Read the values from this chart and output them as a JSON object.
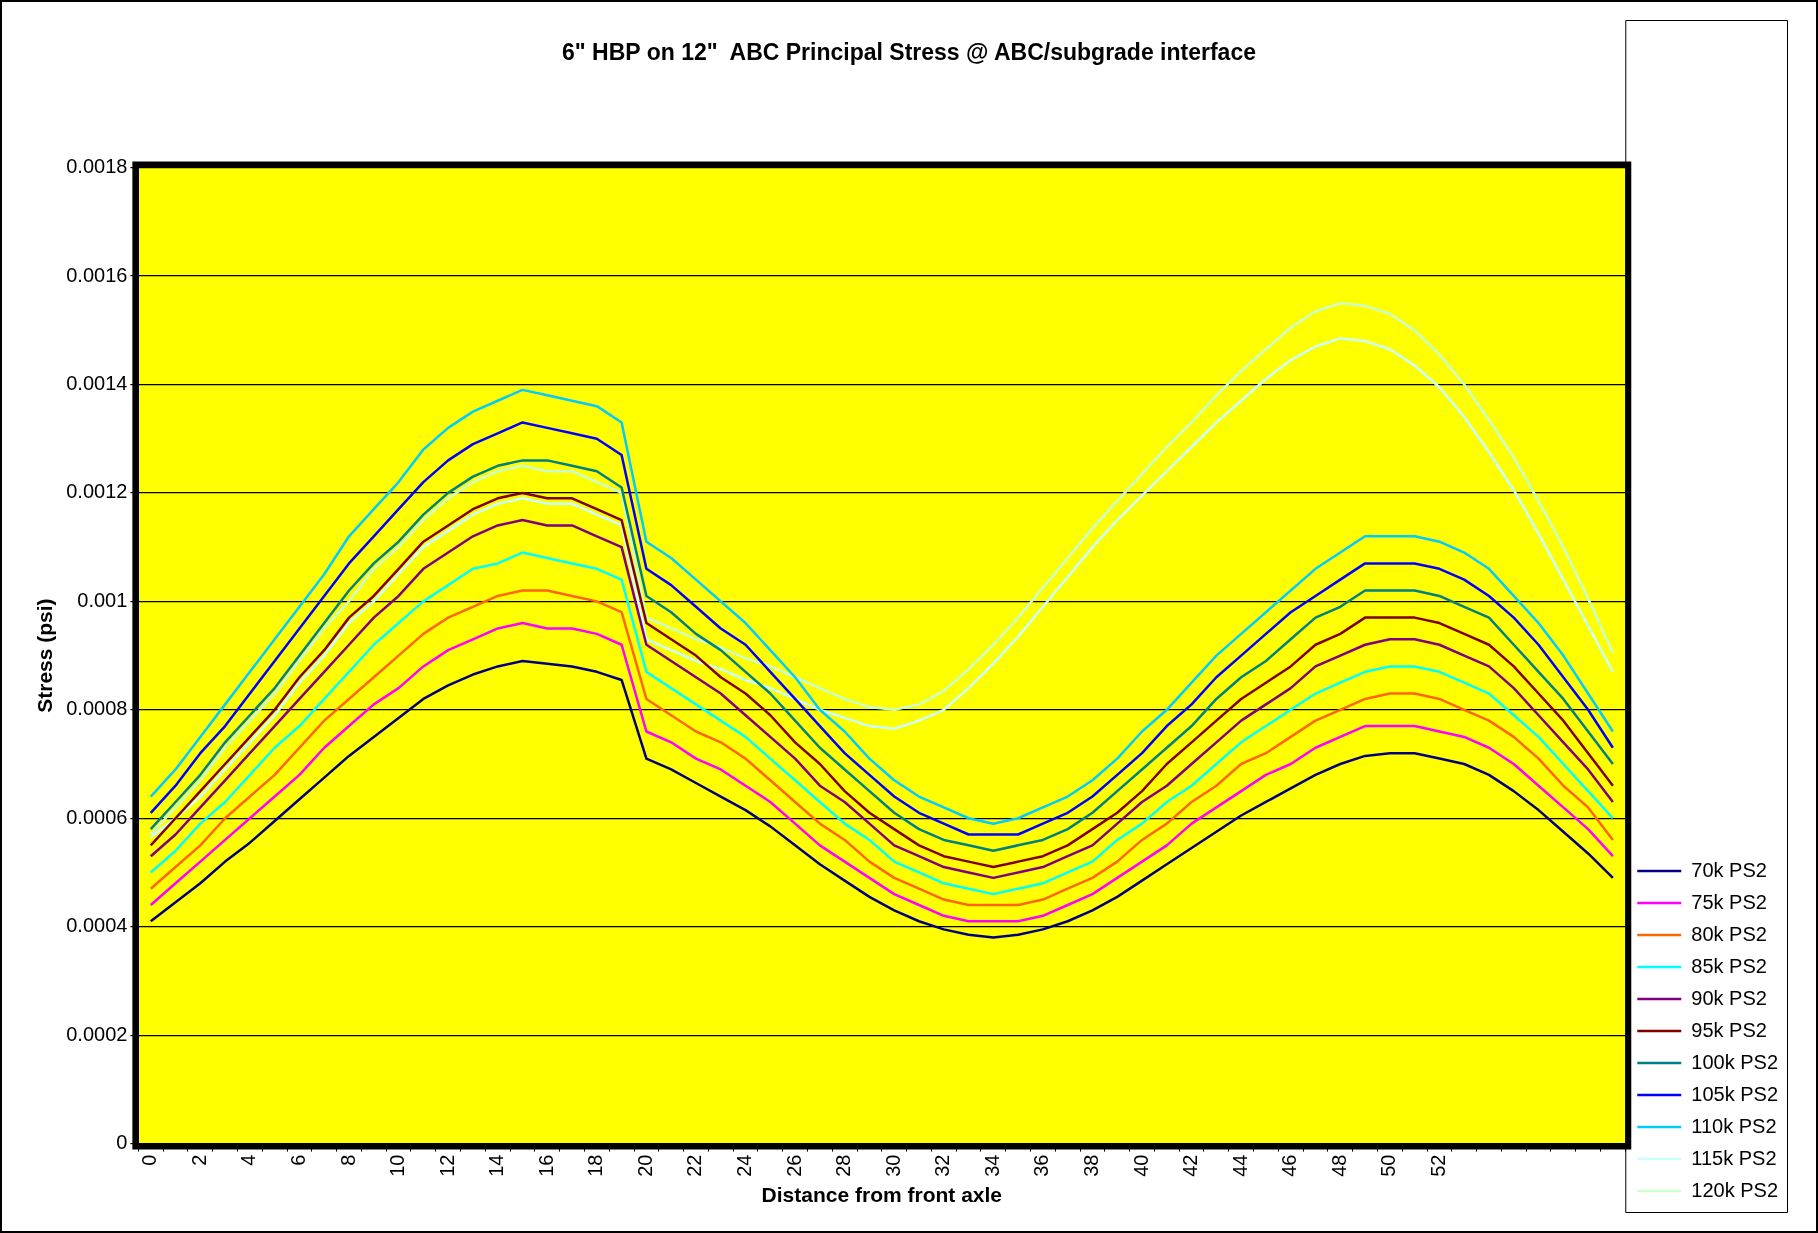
{
  "chart_data": {
    "type": "line",
    "title": "6\" HBP on 12\"  ABC Principal Stress @ ABC/subgrade interface",
    "xlabel": "Distance from front axle",
    "ylabel": "Stress (psi)",
    "categories": [
      "0",
      null,
      "2",
      null,
      "4",
      null,
      "6",
      null,
      "8",
      null,
      "10",
      null,
      "12",
      null,
      "14",
      null,
      "16",
      null,
      "18",
      null,
      "20",
      null,
      "22",
      null,
      "24",
      null,
      "26",
      null,
      "28",
      null,
      "30",
      null,
      "32",
      null,
      "34",
      null,
      "36",
      null,
      "38",
      null,
      "40",
      null,
      "42",
      null,
      "44",
      null,
      "46",
      null,
      "48",
      null,
      "50",
      null,
      "52",
      null,
      null,
      null,
      null,
      null,
      null,
      null
    ],
    "ylim": [
      0,
      0.0018
    ],
    "yticks": [
      0,
      0.0002,
      0.0004,
      0.0006,
      0.0008,
      0.001,
      0.0012,
      0.0014,
      0.0016,
      0.0018
    ],
    "grid": "y",
    "legend": "right",
    "marker": "none",
    "line_style": "solid",
    "series": [
      {
        "name": "70k PS2",
        "color": "#000080",
        "values": [
          0.00041,
          0.000445,
          0.00048,
          0.00052,
          0.000555,
          0.000595,
          0.000635,
          0.000675,
          0.000715,
          0.00075,
          0.000785,
          0.00082,
          0.000845,
          0.000865,
          0.00088,
          0.00089,
          0.000885,
          0.00088,
          0.00087,
          0.000855,
          0.00071,
          0.00069,
          0.000665,
          0.00064,
          0.000615,
          0.000585,
          0.00055,
          0.000515,
          0.000485,
          0.000455,
          0.00043,
          0.00041,
          0.000395,
          0.000385,
          0.00038,
          0.000385,
          0.000395,
          0.00041,
          0.00043,
          0.000455,
          0.000485,
          0.000515,
          0.000545,
          0.000575,
          0.000605,
          0.00063,
          0.000655,
          0.00068,
          0.0007,
          0.000715,
          0.00072,
          0.00072,
          0.00071,
          0.0007,
          0.00068,
          0.00065,
          0.000615,
          0.000575,
          0.000535,
          0.00049
        ]
      },
      {
        "name": "75k PS2",
        "color": "#ff00ff",
        "values": [
          0.00044,
          0.00048,
          0.00052,
          0.00056,
          0.0006,
          0.00064,
          0.00068,
          0.00073,
          0.00077,
          0.00081,
          0.00084,
          0.00088,
          0.00091,
          0.00093,
          0.00095,
          0.00096,
          0.00095,
          0.00095,
          0.00094,
          0.00092,
          0.00076,
          0.00074,
          0.00071,
          0.00069,
          0.00066,
          0.00063,
          0.00059,
          0.00055,
          0.00052,
          0.00049,
          0.00046,
          0.00044,
          0.00042,
          0.00041,
          0.00041,
          0.00041,
          0.00042,
          0.00044,
          0.00046,
          0.00049,
          0.00052,
          0.00055,
          0.00059,
          0.00062,
          0.00065,
          0.00068,
          0.0007,
          0.00073,
          0.00075,
          0.00077,
          0.00077,
          0.00077,
          0.00076,
          0.00075,
          0.00073,
          0.0007,
          0.00066,
          0.00062,
          0.00058,
          0.00053
        ]
      },
      {
        "name": "80k PS2",
        "color": "#ff6600",
        "values": [
          0.00047,
          0.00051,
          0.00055,
          0.0006,
          0.00064,
          0.00068,
          0.00073,
          0.00078,
          0.00082,
          0.00086,
          0.0009,
          0.00094,
          0.00097,
          0.00099,
          0.00101,
          0.00102,
          0.00102,
          0.00101,
          0.001,
          0.00098,
          0.00082,
          0.00079,
          0.00076,
          0.00074,
          0.00071,
          0.00067,
          0.00063,
          0.00059,
          0.00056,
          0.00052,
          0.00049,
          0.00047,
          0.00045,
          0.00044,
          0.00044,
          0.00044,
          0.00045,
          0.00047,
          0.00049,
          0.00052,
          0.00056,
          0.00059,
          0.00063,
          0.00066,
          0.0007,
          0.00072,
          0.00075,
          0.00078,
          0.0008,
          0.00082,
          0.00083,
          0.00083,
          0.00082,
          0.0008,
          0.00078,
          0.00075,
          0.00071,
          0.00066,
          0.00062,
          0.00056
        ]
      },
      {
        "name": "85k PS2",
        "color": "#00ffff",
        "values": [
          0.0005,
          0.00054,
          0.00059,
          0.00063,
          0.00068,
          0.00073,
          0.00077,
          0.00082,
          0.00087,
          0.00092,
          0.00096,
          0.001,
          0.00103,
          0.00106,
          0.00107,
          0.00109,
          0.00108,
          0.00107,
          0.00106,
          0.00104,
          0.00087,
          0.00084,
          0.00081,
          0.00078,
          0.00075,
          0.00071,
          0.00067,
          0.00063,
          0.00059,
          0.00056,
          0.00052,
          0.0005,
          0.00048,
          0.00047,
          0.00046,
          0.00047,
          0.00048,
          0.0005,
          0.00052,
          0.00056,
          0.00059,
          0.00063,
          0.00066,
          0.0007,
          0.00074,
          0.00077,
          0.0008,
          0.00083,
          0.00085,
          0.00087,
          0.00088,
          0.00088,
          0.00087,
          0.00085,
          0.00083,
          0.00079,
          0.00075,
          0.0007,
          0.00065,
          0.0006
        ]
      },
      {
        "name": "90k PS2",
        "color": "#800080",
        "values": [
          0.00053,
          0.00057,
          0.00062,
          0.00067,
          0.00072,
          0.00077,
          0.00082,
          0.00087,
          0.00092,
          0.00097,
          0.00101,
          0.00106,
          0.00109,
          0.00112,
          0.00114,
          0.00115,
          0.00114,
          0.00114,
          0.00112,
          0.0011,
          0.00092,
          0.00089,
          0.00086,
          0.00083,
          0.00079,
          0.00075,
          0.00071,
          0.00066,
          0.00063,
          0.00059,
          0.00055,
          0.00053,
          0.00051,
          0.0005,
          0.00049,
          0.0005,
          0.00051,
          0.00053,
          0.00055,
          0.00059,
          0.00063,
          0.00066,
          0.0007,
          0.00074,
          0.00078,
          0.00081,
          0.00084,
          0.00088,
          0.0009,
          0.00092,
          0.00093,
          0.00093,
          0.00092,
          0.0009,
          0.00088,
          0.00084,
          0.00079,
          0.00074,
          0.00069,
          0.00063
        ]
      },
      {
        "name": "95k PS2",
        "color": "#800000",
        "values": [
          0.00055,
          0.0006,
          0.00065,
          0.0007,
          0.00075,
          0.0008,
          0.00086,
          0.00091,
          0.00097,
          0.00101,
          0.00106,
          0.00111,
          0.00114,
          0.00117,
          0.00119,
          0.0012,
          0.00119,
          0.00119,
          0.00117,
          0.00115,
          0.00096,
          0.00093,
          0.0009,
          0.00086,
          0.00083,
          0.00079,
          0.00074,
          0.0007,
          0.00065,
          0.00061,
          0.00058,
          0.00055,
          0.00053,
          0.00052,
          0.00051,
          0.00052,
          0.00053,
          0.00055,
          0.00058,
          0.00061,
          0.00065,
          0.0007,
          0.00074,
          0.00078,
          0.00082,
          0.00085,
          0.00088,
          0.00092,
          0.00094,
          0.00097,
          0.00097,
          0.00097,
          0.00096,
          0.00094,
          0.00092,
          0.00088,
          0.00083,
          0.00078,
          0.00072,
          0.00066
        ]
      },
      {
        "name": "100k PS2",
        "color": "#008080",
        "values": [
          0.00058,
          0.00063,
          0.00068,
          0.00074,
          0.00079,
          0.00084,
          0.0009,
          0.00096,
          0.00102,
          0.00107,
          0.00111,
          0.00116,
          0.0012,
          0.00123,
          0.00125,
          0.00126,
          0.00126,
          0.00125,
          0.00124,
          0.00121,
          0.00101,
          0.00098,
          0.00094,
          0.00091,
          0.00087,
          0.00083,
          0.00078,
          0.00073,
          0.00069,
          0.00065,
          0.00061,
          0.00058,
          0.00056,
          0.00055,
          0.00054,
          0.00055,
          0.00056,
          0.00058,
          0.00061,
          0.00065,
          0.00069,
          0.00073,
          0.00077,
          0.00082,
          0.00086,
          0.00089,
          0.00093,
          0.00097,
          0.00099,
          0.00102,
          0.00102,
          0.00102,
          0.00101,
          0.00099,
          0.00097,
          0.00092,
          0.00087,
          0.00082,
          0.00076,
          0.0007
        ]
      },
      {
        "name": "105k PS2",
        "color": "#0000ff",
        "values": [
          0.00061,
          0.00066,
          0.00072,
          0.00077,
          0.00083,
          0.00089,
          0.00095,
          0.00101,
          0.00107,
          0.00112,
          0.00117,
          0.00122,
          0.00126,
          0.00129,
          0.00131,
          0.00133,
          0.00132,
          0.00131,
          0.0013,
          0.00127,
          0.00106,
          0.00103,
          0.00099,
          0.00095,
          0.00092,
          0.00087,
          0.00082,
          0.00077,
          0.00072,
          0.00068,
          0.00064,
          0.00061,
          0.00059,
          0.00057,
          0.00057,
          0.00057,
          0.00059,
          0.00061,
          0.00064,
          0.00068,
          0.00072,
          0.00077,
          0.00081,
          0.00086,
          0.0009,
          0.00094,
          0.00098,
          0.00101,
          0.00104,
          0.00107,
          0.00107,
          0.00107,
          0.00106,
          0.00104,
          0.00101,
          0.00097,
          0.00092,
          0.00086,
          0.0008,
          0.00073
        ]
      },
      {
        "name": "110k PS2",
        "color": "#00ccff",
        "values": [
          0.00064,
          0.00069,
          0.00075,
          0.00081,
          0.00087,
          0.00093,
          0.00099,
          0.00105,
          0.00112,
          0.00117,
          0.00122,
          0.00128,
          0.00132,
          0.00135,
          0.00137,
          0.00139,
          0.00138,
          0.00137,
          0.00136,
          0.00133,
          0.00111,
          0.00108,
          0.00104,
          0.001,
          0.00096,
          0.00091,
          0.00086,
          0.0008,
          0.00076,
          0.00071,
          0.00067,
          0.00064,
          0.00062,
          0.0006,
          0.00059,
          0.0006,
          0.00062,
          0.00064,
          0.00067,
          0.00071,
          0.00076,
          0.0008,
          0.00085,
          0.0009,
          0.00094,
          0.00098,
          0.00102,
          0.00106,
          0.00109,
          0.00112,
          0.00112,
          0.00112,
          0.00111,
          0.00109,
          0.00106,
          0.00101,
          0.00096,
          0.0009,
          0.00083,
          0.00076
        ]
      },
      {
        "name": "115k PS2",
        "color": "#ccffff",
        "values": [
          0.000565,
          0.0006,
          0.00064,
          0.00069,
          0.00074,
          0.00079,
          0.00085,
          0.0009,
          0.00096,
          0.001,
          0.00105,
          0.0011,
          0.00113,
          0.00116,
          0.00118,
          0.00119,
          0.00118,
          0.00118,
          0.00116,
          0.00114,
          0.00093,
          0.00091,
          0.00089,
          0.000875,
          0.000855,
          0.00084,
          0.00082,
          0.0008,
          0.000785,
          0.00077,
          0.000765,
          0.00078,
          0.0008,
          0.00084,
          0.000885,
          0.000935,
          0.00099,
          0.001045,
          0.0011,
          0.00115,
          0.001195,
          0.00124,
          0.001285,
          0.00133,
          0.00137,
          0.00141,
          0.001445,
          0.00147,
          0.001485,
          0.00148,
          0.001465,
          0.001435,
          0.001395,
          0.00134,
          0.001275,
          0.001205,
          0.001125,
          0.00104,
          0.000955,
          0.00087
        ]
      },
      {
        "name": "120k PS2",
        "color": "#ccffcc",
        "values": [
          0.00057,
          0.00062,
          0.00067,
          0.00073,
          0.00078,
          0.00083,
          0.00089,
          0.00095,
          0.001,
          0.00106,
          0.0011,
          0.00115,
          0.00119,
          0.00122,
          0.00124,
          0.00125,
          0.00124,
          0.00124,
          0.00122,
          0.0012,
          0.00097,
          0.00095,
          0.00093,
          0.000915,
          0.000895,
          0.00088,
          0.00086,
          0.00084,
          0.00082,
          0.000805,
          0.0008,
          0.00081,
          0.000835,
          0.000875,
          0.00092,
          0.00097,
          0.001025,
          0.00108,
          0.001135,
          0.001185,
          0.001235,
          0.001285,
          0.00133,
          0.00138,
          0.001425,
          0.001465,
          0.001505,
          0.001535,
          0.00155,
          0.001545,
          0.00153,
          0.0015,
          0.001455,
          0.0014,
          0.001335,
          0.001265,
          0.001185,
          0.0011,
          0.001005,
          0.000905
        ]
      }
    ]
  }
}
